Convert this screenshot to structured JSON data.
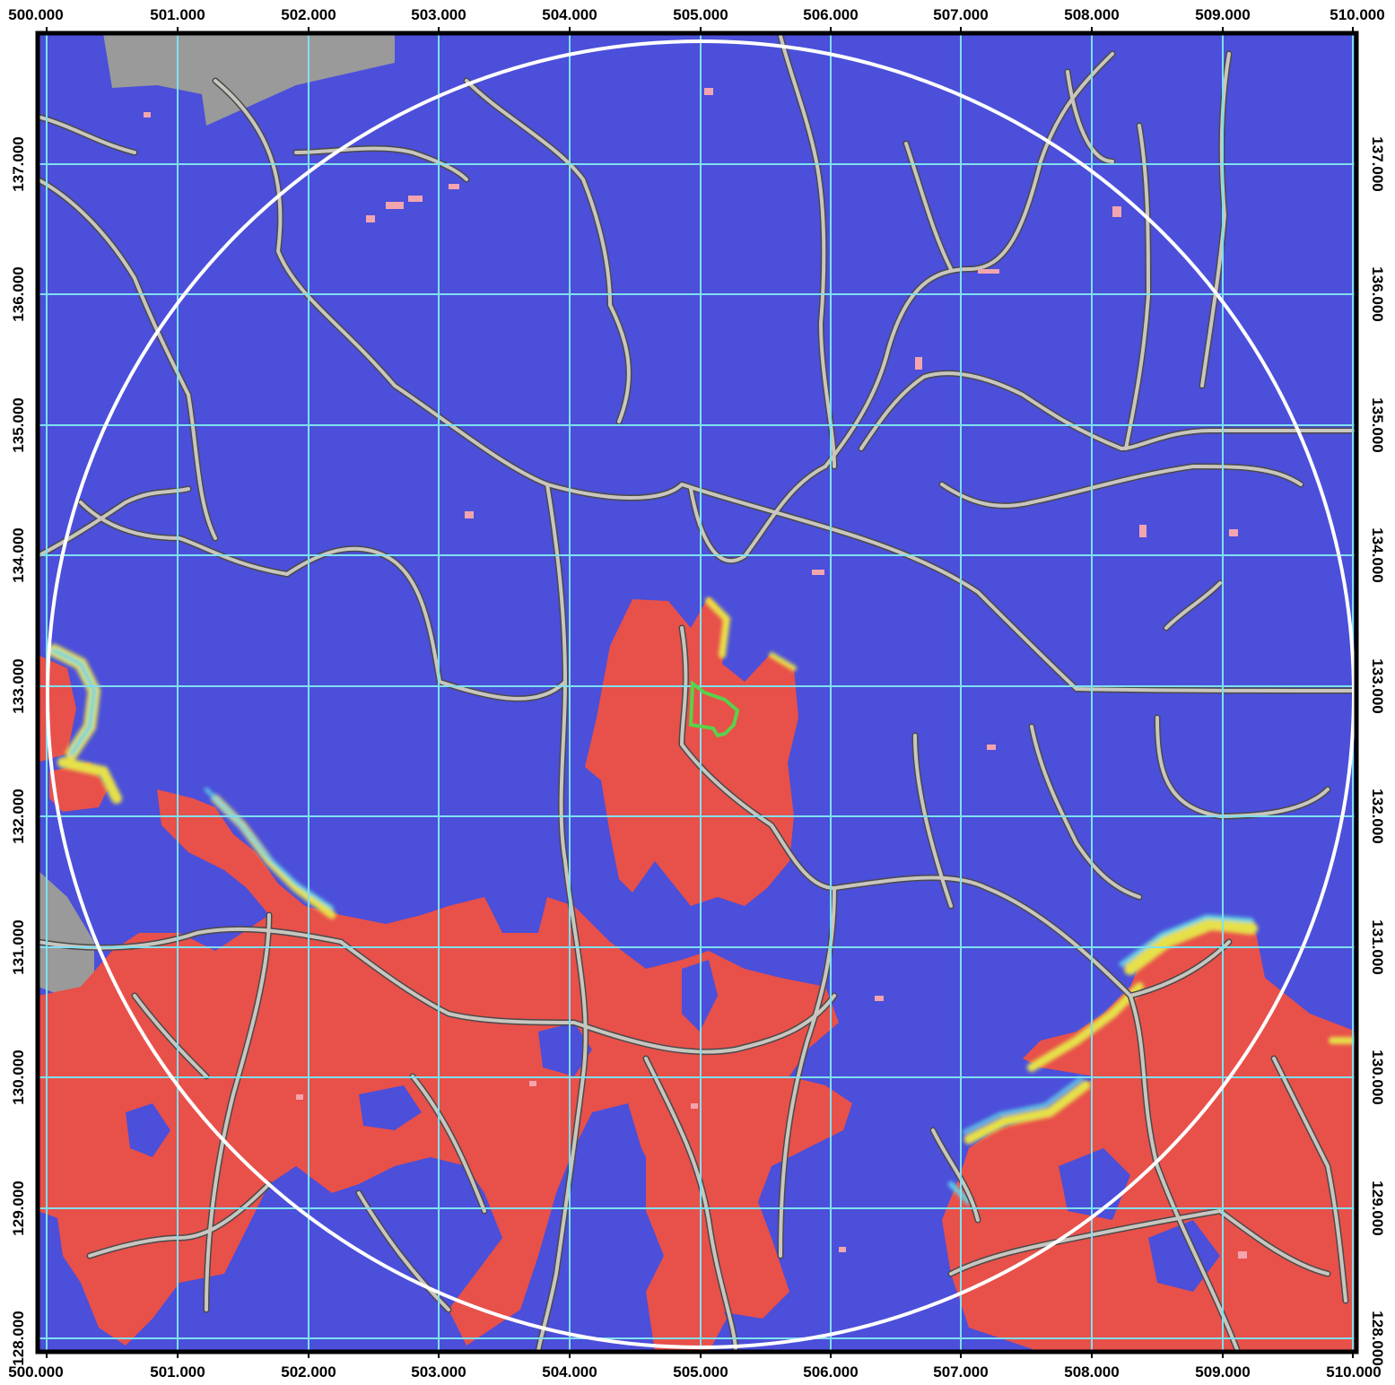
{
  "map": {
    "x_ticks": [
      "500.000",
      "501.000",
      "502.000",
      "503.000",
      "504.000",
      "505.000",
      "506.000",
      "507.000",
      "508.000",
      "509.000",
      "510.000"
    ],
    "y_ticks": [
      "137.000",
      "136.000",
      "135.000",
      "134.000",
      "133.000",
      "132.000",
      "131.000",
      "130.000",
      "129.000",
      "128.000"
    ],
    "x_range": [
      500,
      510
    ],
    "y_range": [
      127.9,
      138.0
    ],
    "colors": {
      "background": "#4b4fd9",
      "visible_area": "#e8504a",
      "edge_yellow": "#e6e04a",
      "edge_cyan": "#5ed3e6",
      "roads": "#c9c6c0",
      "road_casing": "#4a4a4a",
      "grid": "#7fe0ef",
      "circle": "#ffffff",
      "site": "#59d14a",
      "no_data": "#9a9a9a",
      "frame": "#000000"
    },
    "features": {
      "grid": true,
      "viewshed_circle": true,
      "site_outline": true
    }
  }
}
